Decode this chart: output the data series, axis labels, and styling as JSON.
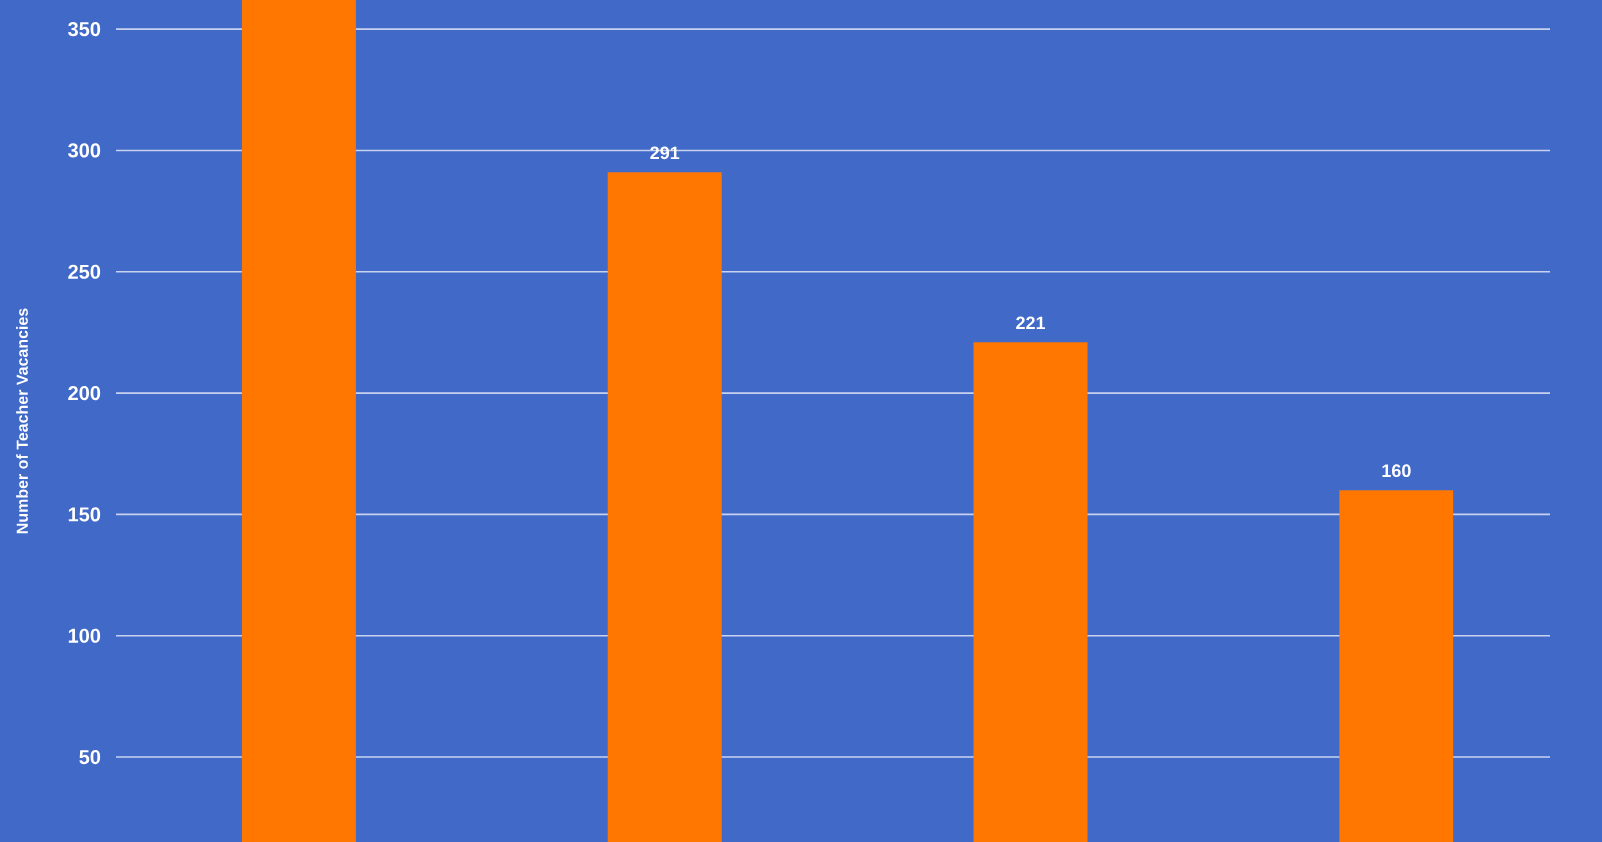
{
  "chart_data": {
    "type": "bar",
    "ylabel": "Number of Teacher Vacancies",
    "categories": [
      null,
      null,
      null,
      null
    ],
    "values": [
      362,
      291,
      221,
      160
    ],
    "value_labels": [
      null,
      "291",
      "221",
      "160"
    ],
    "color": "#ff7700",
    "ylim": [
      15,
      362
    ],
    "yticks": [
      50,
      100,
      150,
      200,
      250,
      300,
      350
    ],
    "grid": "y"
  }
}
